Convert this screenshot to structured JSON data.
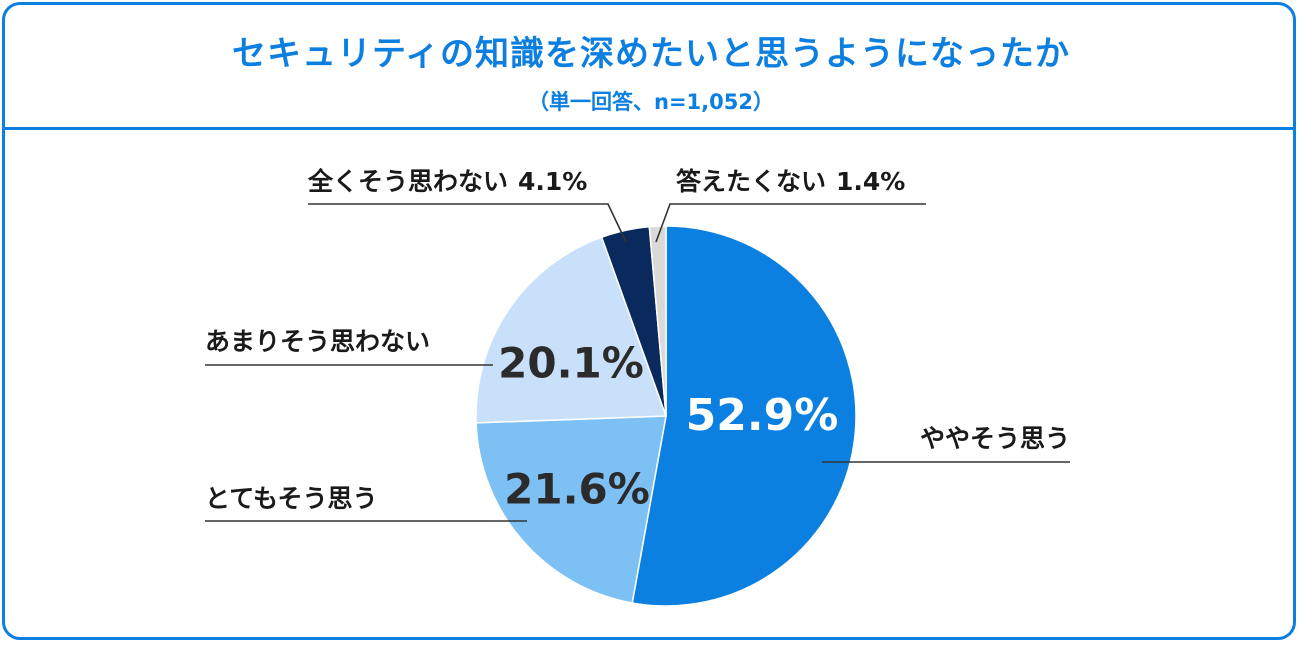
{
  "title": "セキュリティの知識を深めたいと思うようになったか",
  "subtitle": "（単一回答、n=1,052）",
  "chart_data": {
    "type": "pie",
    "slices": [
      {
        "name": "ややそう思う",
        "value": 52.9,
        "value_label": "52.9%",
        "color": "#0b80e0"
      },
      {
        "name": "とてもそう思う",
        "value": 21.6,
        "value_label": "21.6%",
        "color": "#7dc0f4"
      },
      {
        "name": "あまりそう思わない",
        "value": 20.1,
        "value_label": "20.1%",
        "color": "#c9e0fb"
      },
      {
        "name": "全くそう思わない",
        "value": 4.1,
        "value_label": "4.1%",
        "color": "#0a2a5e"
      },
      {
        "name": "答えたくない",
        "value": 1.4,
        "value_label": "1.4%",
        "color": "#d9d9d9"
      }
    ]
  }
}
